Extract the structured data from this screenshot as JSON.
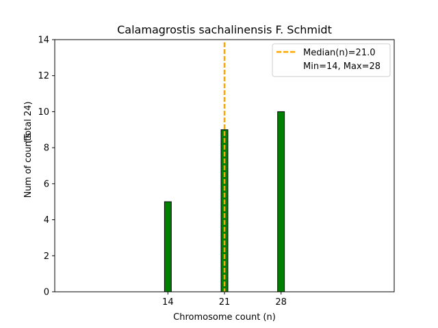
{
  "chart_data": {
    "type": "bar",
    "title": "Calamagrostis sachalinensis F. Schmidt",
    "xlabel": "Chromosome count (n)",
    "ylabel": "Num of counts",
    "ylabel_note": "(Total 24)",
    "x": [
      14,
      21,
      28
    ],
    "values": [
      5,
      9,
      10
    ],
    "xlim": [
      0,
      42
    ],
    "ylim": [
      0,
      14
    ],
    "xticks": [
      "14",
      "21",
      "28"
    ],
    "yticks": [
      "0",
      "2",
      "4",
      "6",
      "8",
      "10",
      "12",
      "14"
    ],
    "bar_color": "#008000",
    "bar_edge_color": "#000000",
    "median": {
      "value": 21.0,
      "color": "#FFA500",
      "label": "Median(n)=21.0"
    },
    "range_label": "Min=14, Max=28",
    "legend_position": "top-right",
    "grid": false
  }
}
